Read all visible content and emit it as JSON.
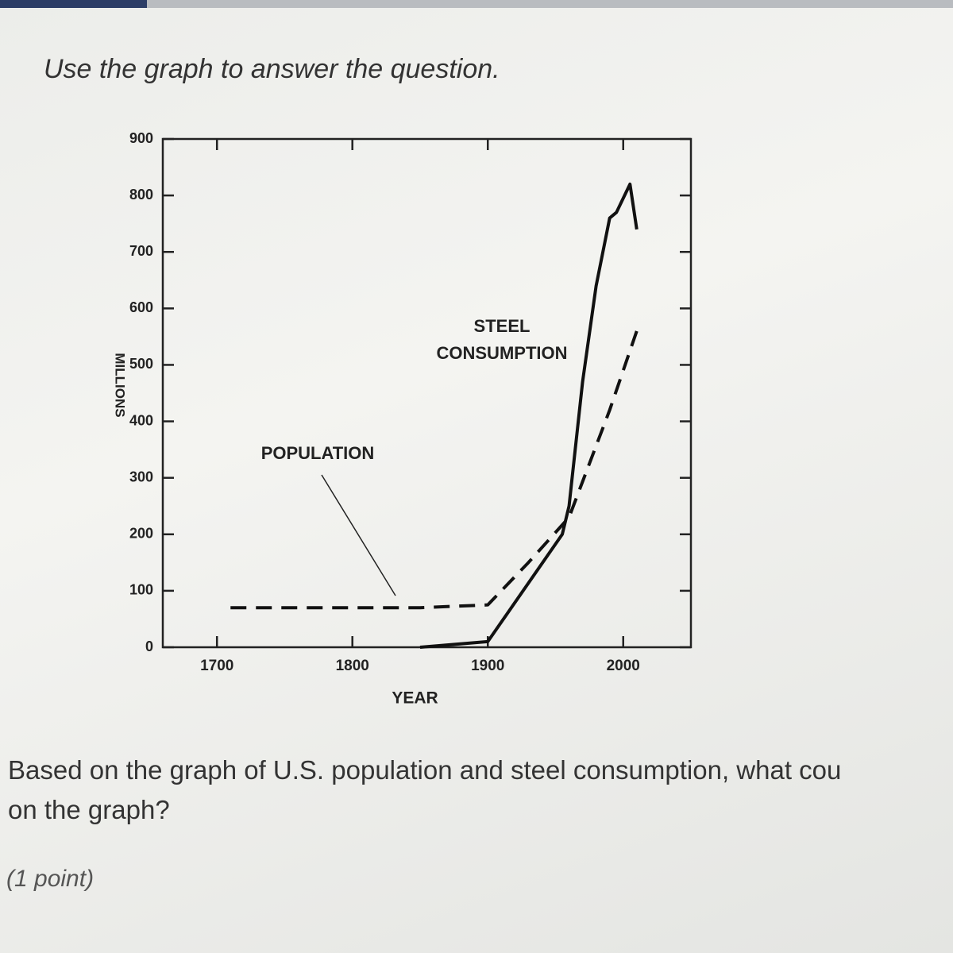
{
  "header": {
    "instruction": "Use the graph to answer the question."
  },
  "chart_data": {
    "type": "line",
    "x_label": "YEAR",
    "y_label": "MILLIONS",
    "xlim": [
      1660,
      2050
    ],
    "xticks": [
      1700,
      1800,
      1900,
      2000
    ],
    "ylim": [
      0,
      900
    ],
    "yticks": [
      0,
      100,
      200,
      300,
      400,
      500,
      600,
      700,
      800,
      900
    ],
    "series": [
      {
        "name": "POPULATION",
        "color": "#111111",
        "dashed": true,
        "x": [
          1710,
          1750,
          1800,
          1850,
          1900,
          1930,
          1960,
          1990,
          2010
        ],
        "values": [
          70,
          70,
          70,
          70,
          75,
          150,
          230,
          420,
          560
        ]
      },
      {
        "name": "STEEL CONSUMPTION",
        "color": "#111111",
        "dashed": false,
        "x": [
          1850,
          1900,
          1955,
          1960,
          1970,
          1980,
          1990,
          1995,
          2005,
          2010
        ],
        "values": [
          0,
          10,
          200,
          250,
          470,
          640,
          760,
          770,
          820,
          740
        ]
      }
    ]
  },
  "question": {
    "lines": [
      "Based on the graph of U.S. population and steel consumption, what cou",
      "on the graph?"
    ],
    "points": "(1 point)"
  }
}
